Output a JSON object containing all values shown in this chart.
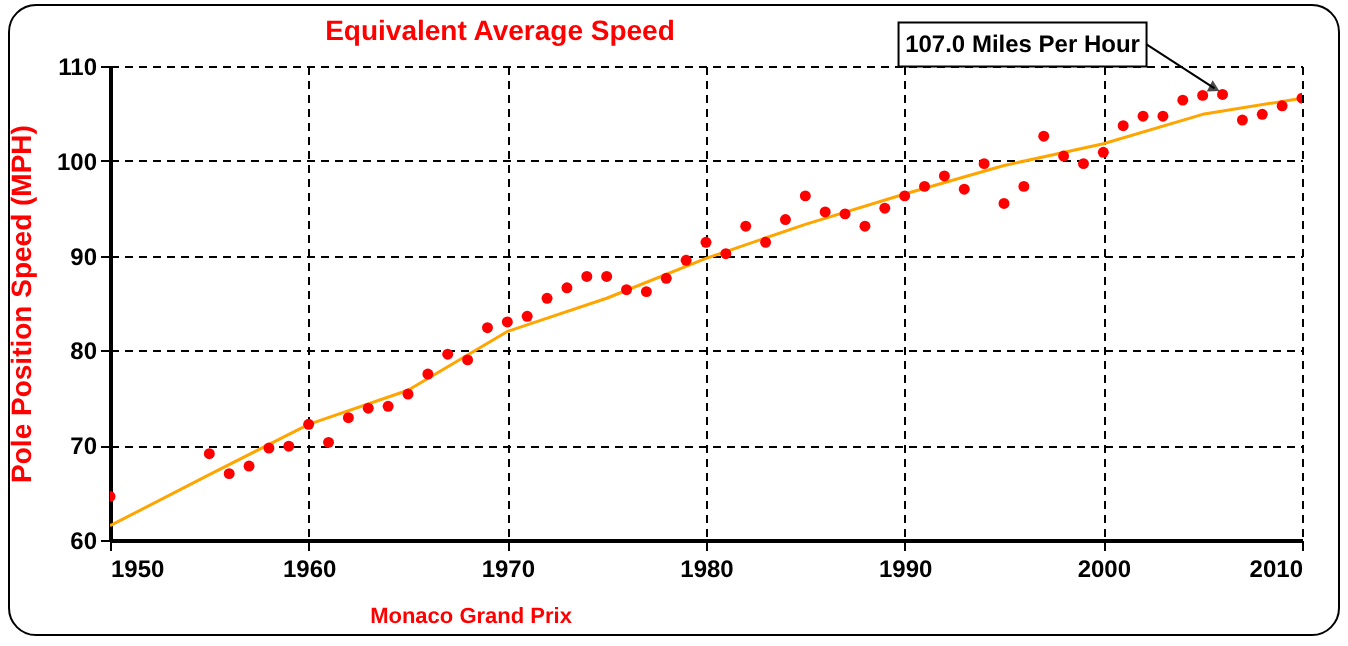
{
  "chart_data": {
    "type": "scatter",
    "title": "Equivalent Average Speed",
    "xlabel": "Monaco Grand Prix",
    "ylabel": "Pole Position Speed (MPH)",
    "x": [
      1950,
      1955,
      1956,
      1957,
      1958,
      1959,
      1960,
      1961,
      1962,
      1963,
      1964,
      1965,
      1966,
      1967,
      1968,
      1969,
      1970,
      1971,
      1972,
      1973,
      1974,
      1975,
      1976,
      1977,
      1978,
      1979,
      1980,
      1981,
      1982,
      1983,
      1984,
      1985,
      1986,
      1987,
      1988,
      1989,
      1990,
      1991,
      1992,
      1993,
      1994,
      1995,
      1996,
      1997,
      1998,
      1999,
      2000,
      2001,
      2002,
      2003,
      2004,
      2005,
      2006,
      2007,
      2008,
      2009,
      2010
    ],
    "series": [
      {
        "color": "#ff0000",
        "values": [
          64.6,
          69.1,
          67.0,
          67.8,
          69.7,
          69.9,
          72.2,
          70.3,
          72.9,
          73.9,
          74.1,
          75.4,
          77.5,
          79.6,
          79.0,
          82.4,
          83.0,
          83.6,
          85.5,
          86.6,
          87.8,
          87.8,
          86.4,
          86.2,
          87.6,
          89.5,
          91.4,
          90.2,
          93.1,
          91.4,
          93.8,
          96.3,
          94.6,
          94.4,
          93.1,
          95.0,
          96.3,
          97.3,
          98.4,
          97.0,
          99.7,
          95.5,
          97.3,
          102.6,
          100.5,
          99.7,
          100.9,
          103.7,
          104.7,
          104.7,
          106.4,
          106.9,
          107.0,
          104.3,
          104.9,
          105.8,
          106.6
        ]
      },
      {
        "type": "line",
        "color": "#ffa500",
        "marker": "none",
        "x": [
          1950,
          1955,
          1960,
          1965,
          1970,
          1975,
          1980,
          1985,
          1990,
          1995,
          2000,
          2005,
          2010
        ],
        "values": [
          61.5,
          66.9,
          72.2,
          75.8,
          82.0,
          85.5,
          89.7,
          93.3,
          96.5,
          99.5,
          101.8,
          104.9,
          106.6
        ]
      }
    ],
    "xlim": [
      1950,
      2010
    ],
    "xticks": [
      1950,
      1960,
      1970,
      1980,
      1990,
      2000,
      2010
    ],
    "ylim": [
      60,
      110
    ],
    "yticks": [
      60,
      70,
      80,
      90,
      100,
      110
    ],
    "grid": true,
    "legend": false,
    "marker": "circle",
    "annotations": [
      {
        "text": "107.0 Miles Per Hour",
        "x": 2006,
        "y": 107.0
      }
    ]
  }
}
